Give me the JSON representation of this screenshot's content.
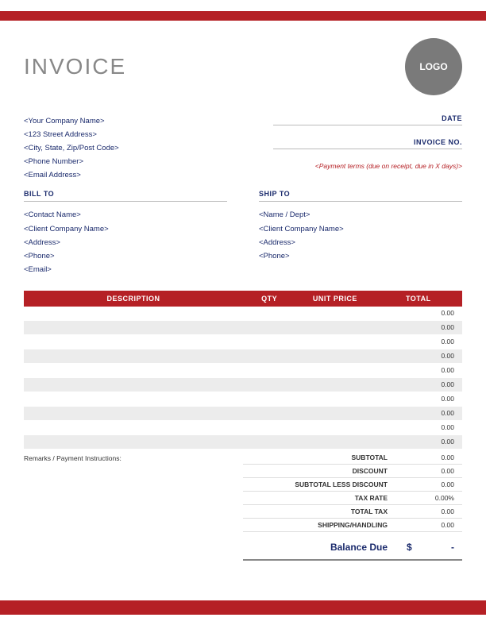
{
  "colors": {
    "accent": "#b52025",
    "text": "#1a2a6c",
    "logo_bg": "#7a7a7a",
    "row_alt": "#ececec"
  },
  "title": "INVOICE",
  "logo_text": "LOGO",
  "company": {
    "name": "<Your Company Name>",
    "street": "<123 Street Address>",
    "city": "<City, State, Zip/Post Code>",
    "phone": "<Phone Number>",
    "email": "<Email Address>"
  },
  "meta": {
    "date_label": "DATE",
    "invoice_no_label": "INVOICE NO.",
    "payment_terms": "<Payment terms (due on receipt, due in X days)>"
  },
  "bill_to": {
    "label": "BILL TO",
    "contact": "<Contact Name>",
    "company": "<Client Company Name>",
    "address": "<Address>",
    "phone": "<Phone>",
    "email": "<Email>"
  },
  "ship_to": {
    "label": "SHIP TO",
    "name": "<Name / Dept>",
    "company": "<Client Company Name>",
    "address": "<Address>",
    "phone": "<Phone>"
  },
  "table": {
    "headers": {
      "description": "DESCRIPTION",
      "qty": "QTY",
      "unit_price": "UNIT PRICE",
      "total": "TOTAL"
    },
    "rows": [
      {
        "description": "",
        "qty": "",
        "unit_price": "",
        "total": "0.00"
      },
      {
        "description": "",
        "qty": "",
        "unit_price": "",
        "total": "0.00"
      },
      {
        "description": "",
        "qty": "",
        "unit_price": "",
        "total": "0.00"
      },
      {
        "description": "",
        "qty": "",
        "unit_price": "",
        "total": "0.00"
      },
      {
        "description": "",
        "qty": "",
        "unit_price": "",
        "total": "0.00"
      },
      {
        "description": "",
        "qty": "",
        "unit_price": "",
        "total": "0.00"
      },
      {
        "description": "",
        "qty": "",
        "unit_price": "",
        "total": "0.00"
      },
      {
        "description": "",
        "qty": "",
        "unit_price": "",
        "total": "0.00"
      },
      {
        "description": "",
        "qty": "",
        "unit_price": "",
        "total": "0.00"
      },
      {
        "description": "",
        "qty": "",
        "unit_price": "",
        "total": "0.00"
      }
    ]
  },
  "remarks_label": "Remarks / Payment Instructions:",
  "summary": {
    "subtotal": {
      "label": "SUBTOTAL",
      "value": "0.00"
    },
    "discount": {
      "label": "DISCOUNT",
      "value": "0.00"
    },
    "subtotal_less": {
      "label": "SUBTOTAL LESS DISCOUNT",
      "value": "0.00"
    },
    "tax_rate": {
      "label": "TAX RATE",
      "value": "0.00%"
    },
    "total_tax": {
      "label": "TOTAL TAX",
      "value": "0.00"
    },
    "shipping": {
      "label": "SHIPPING/HANDLING",
      "value": "0.00"
    }
  },
  "balance": {
    "label": "Balance Due",
    "currency": "$",
    "value": "-"
  }
}
